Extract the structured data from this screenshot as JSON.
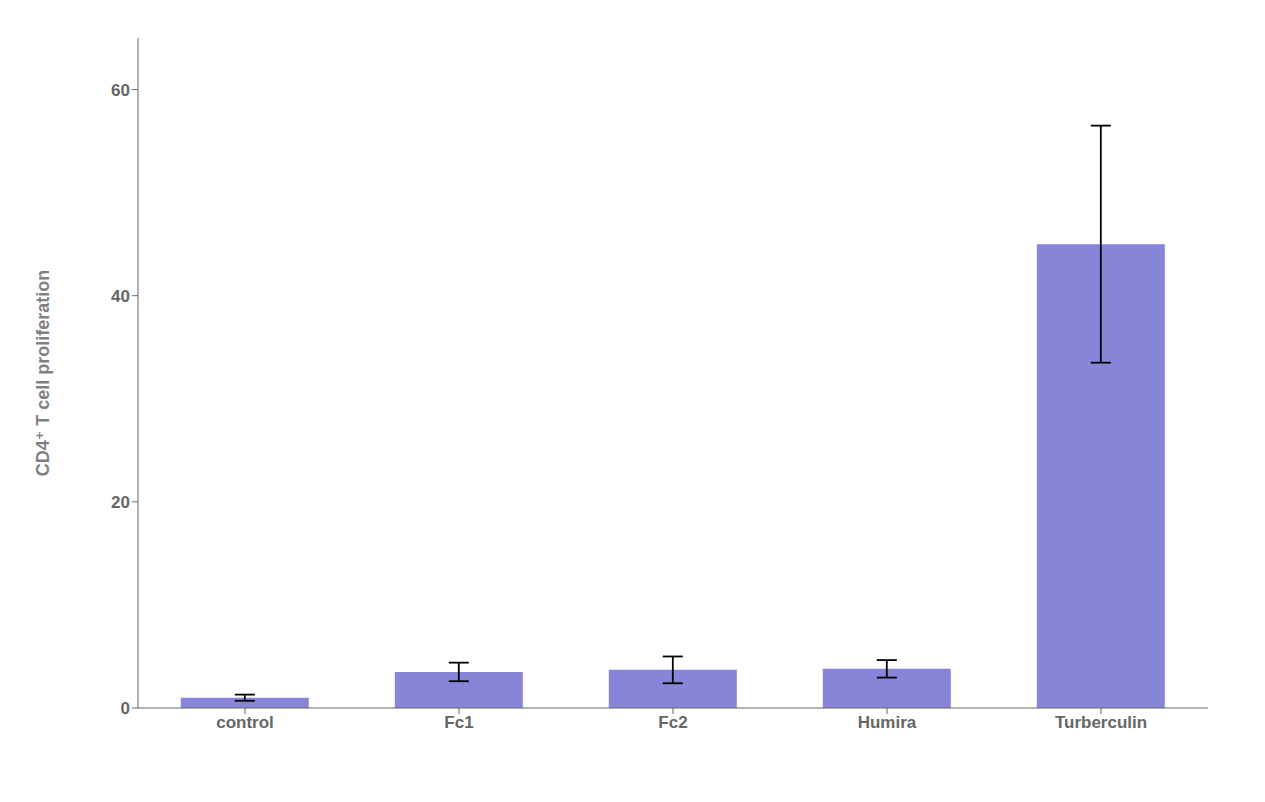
{
  "chart_data": {
    "type": "bar",
    "categories": [
      "control",
      "Fc1",
      "Fc2",
      "Humira",
      "Turberculin"
    ],
    "values": [
      1.0,
      3.5,
      3.7,
      3.8,
      45.0
    ],
    "errors": [
      0.3,
      0.9,
      1.3,
      0.85,
      11.5
    ],
    "ylabel": "CD4⁺ T cell proliferation",
    "ylim": [
      0,
      65
    ],
    "yticks": [
      0,
      20,
      40,
      60
    ],
    "color": "#8884d8",
    "grid": false
  }
}
